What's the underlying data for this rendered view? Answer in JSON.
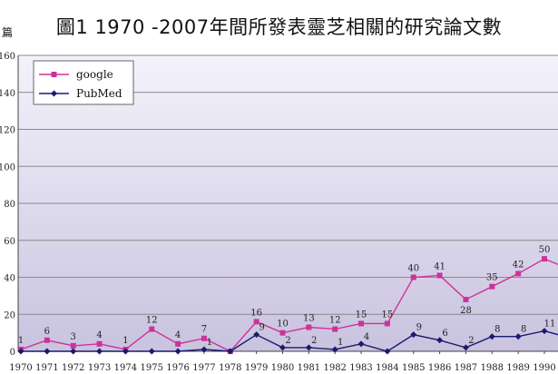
{
  "title": "圖1 1970 -2007年間所發表靈芝相關的研究論文數",
  "chart_data": {
    "type": "line",
    "title": "圖1 1970 -2007年間所發表靈芝相關的研究論文數",
    "ylabel": "篇",
    "xlabel": "",
    "categories": [
      "1970",
      "1971",
      "1972",
      "1973",
      "1974",
      "1975",
      "1976",
      "1977",
      "1978",
      "1979",
      "1980",
      "1981",
      "1982",
      "1983",
      "1984",
      "1985",
      "1986",
      "1987",
      "1988",
      "1989",
      "1990"
    ],
    "ylim": [
      0,
      160
    ],
    "yticks": [
      0,
      20,
      40,
      60,
      80,
      100,
      120,
      140,
      160
    ],
    "grid": true,
    "legend": "top-left",
    "series": [
      {
        "name": "google",
        "color": "#cc3399",
        "marker": "square",
        "values": [
          1,
          6,
          3,
          4,
          1,
          12,
          4,
          7,
          0,
          16,
          10,
          13,
          12,
          15,
          15,
          40,
          41,
          28,
          35,
          42,
          50
        ],
        "end_value": 47,
        "labels": [
          "1",
          "6",
          "3",
          "4",
          "1",
          "12",
          "4",
          "7",
          "",
          "16",
          "10",
          "13",
          "12",
          "15",
          "15",
          "40",
          "41",
          "28",
          "35",
          "42",
          "50"
        ]
      },
      {
        "name": "PubMed",
        "color": "#1a1a6e",
        "marker": "diamond",
        "values": [
          0,
          0,
          0,
          0,
          0,
          0,
          0,
          1,
          0,
          9,
          2,
          2,
          1,
          4,
          0,
          9,
          6,
          2,
          8,
          8,
          11
        ],
        "end_value": 9,
        "labels": [
          "",
          "",
          "",
          "",
          "",
          "",
          "",
          "1",
          "",
          "9",
          "2",
          "2",
          "1",
          "4",
          "",
          "9",
          "6",
          "2",
          "8",
          "8",
          "11"
        ]
      }
    ]
  },
  "colors": {
    "plot_bg_top": "#f4f2fb",
    "plot_bg_bottom": "#c9c3df",
    "gridline": "#8a8a8a"
  }
}
